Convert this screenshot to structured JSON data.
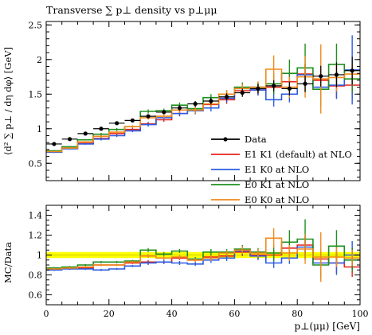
{
  "chart_data": [
    {
      "type": "line",
      "title": "Transverse ∑ p⊥ density vs p⊥μμ",
      "xlabel": "p⊥(μμ) [GeV]",
      "ylabel": "⟨d² ∑ p⊥ / dη dφ⟩ [GeV]",
      "xlim": [
        0,
        100
      ],
      "ylim": [
        0.25,
        2.55
      ],
      "yticks": [
        "0.5",
        "1",
        "1.5",
        "2",
        "2.5"
      ],
      "legend_position": "bottom-right",
      "x_edges": [
        0,
        5,
        10,
        15,
        20,
        25,
        30,
        35,
        40,
        45,
        50,
        55,
        60,
        65,
        70,
        75,
        80,
        85,
        90,
        95,
        100
      ],
      "data_points": {
        "x": [
          2.5,
          7.5,
          12.5,
          17.5,
          22.5,
          27.5,
          32.5,
          37.5,
          42.5,
          47.5,
          52.5,
          57.5,
          62.5,
          67.5,
          72.5,
          77.5,
          82.5,
          87.5,
          92.5,
          97.5
        ],
        "y": [
          0.78,
          0.85,
          0.93,
          1.0,
          1.08,
          1.12,
          1.18,
          1.24,
          1.3,
          1.36,
          1.4,
          1.46,
          1.52,
          1.58,
          1.62,
          1.58,
          1.65,
          1.76,
          1.78,
          1.84
        ],
        "yerr": [
          0.02,
          0.02,
          0.02,
          0.02,
          0.02,
          0.02,
          0.03,
          0.03,
          0.04,
          0.04,
          0.05,
          0.05,
          0.06,
          0.07,
          0.08,
          0.1,
          0.12,
          0.15,
          0.18,
          0.2
        ]
      },
      "series": [
        {
          "name": "Data",
          "color": "#000000",
          "style": "points"
        },
        {
          "name": "E1 K1 (default) at NLO",
          "color": "#e8231c",
          "values": [
            0.67,
            0.72,
            0.79,
            0.86,
            0.93,
            0.99,
            1.07,
            1.13,
            1.22,
            1.26,
            1.35,
            1.42,
            1.55,
            1.56,
            1.6,
            1.68,
            1.79,
            1.7,
            1.62,
            1.63
          ],
          "err": [
            0.01,
            0.01,
            0.01,
            0.02,
            0.02,
            0.02,
            0.03,
            0.03,
            0.04,
            0.05,
            0.05,
            0.06,
            0.07,
            0.08,
            0.1,
            0.12,
            0.15,
            0.15,
            0.18,
            0.2
          ]
        },
        {
          "name": "E1 K0 at NLO",
          "color": "#2c5ce0",
          "values": [
            0.66,
            0.71,
            0.78,
            0.85,
            0.9,
            0.97,
            1.06,
            1.16,
            1.22,
            1.26,
            1.3,
            1.44,
            1.58,
            1.56,
            1.42,
            1.5,
            1.78,
            1.6,
            1.63,
            1.85
          ],
          "err": [
            0.01,
            0.01,
            0.01,
            0.02,
            0.02,
            0.02,
            0.03,
            0.03,
            0.04,
            0.05,
            0.05,
            0.06,
            0.07,
            0.08,
            0.1,
            0.12,
            0.15,
            0.18,
            0.2,
            0.5
          ]
        },
        {
          "name": "E0 K1 at NLO",
          "color": "#1f8f1f",
          "values": [
            0.68,
            0.74,
            0.84,
            0.92,
            0.99,
            1.03,
            1.25,
            1.26,
            1.34,
            1.29,
            1.45,
            1.5,
            1.6,
            1.6,
            1.65,
            1.8,
            1.88,
            1.57,
            1.93,
            1.72
          ],
          "err": [
            0.01,
            0.01,
            0.01,
            0.02,
            0.02,
            0.02,
            0.03,
            0.03,
            0.04,
            0.05,
            0.05,
            0.06,
            0.07,
            0.08,
            0.15,
            0.2,
            0.35,
            0.25,
            0.3,
            0.2
          ]
        },
        {
          "name": "E0 K0 at NLO",
          "color": "#f08a1c",
          "values": [
            0.67,
            0.72,
            0.81,
            0.89,
            0.95,
            1.03,
            1.16,
            1.18,
            1.27,
            1.27,
            1.36,
            1.5,
            1.58,
            1.6,
            1.86,
            1.6,
            1.75,
            1.72,
            1.74,
            1.79
          ],
          "err": [
            0.01,
            0.01,
            0.01,
            0.02,
            0.02,
            0.02,
            0.03,
            0.03,
            0.04,
            0.05,
            0.05,
            0.06,
            0.07,
            0.08,
            0.2,
            0.15,
            0.3,
            0.5,
            0.2,
            0.15
          ]
        }
      ]
    },
    {
      "type": "line",
      "ylabel": "MC/Data",
      "xlabel": "p⊥(μμ) [GeV]",
      "xlim": [
        0,
        100
      ],
      "ylim": [
        0.5,
        1.5
      ],
      "yticks": [
        "0.6",
        "0.8",
        "1",
        "1.2",
        "1.4"
      ],
      "xticks": [
        "0",
        "20",
        "40",
        "60",
        "80",
        "100"
      ],
      "data_band": {
        "color": "#ffff00",
        "line_color": "#d8d800"
      },
      "series": [
        {
          "name": "E1 K1 (default) at NLO",
          "color": "#e8231c",
          "values": [
            0.86,
            0.87,
            0.87,
            0.9,
            0.9,
            0.92,
            0.93,
            0.93,
            0.97,
            0.95,
            0.98,
            0.99,
            1.03,
            1.0,
            1.0,
            1.07,
            1.1,
            0.96,
            0.92,
            0.88
          ],
          "err": [
            0.01,
            0.01,
            0.01,
            0.01,
            0.01,
            0.01,
            0.02,
            0.02,
            0.02,
            0.02,
            0.03,
            0.03,
            0.04,
            0.04,
            0.05,
            0.06,
            0.08,
            0.08,
            0.1,
            0.1
          ]
        },
        {
          "name": "E1 K0 at NLO",
          "color": "#2c5ce0",
          "values": [
            0.85,
            0.86,
            0.86,
            0.85,
            0.86,
            0.89,
            0.92,
            0.93,
            0.92,
            0.91,
            0.95,
            0.97,
            1.04,
            0.99,
            0.92,
            0.97,
            1.08,
            0.92,
            0.92,
            1.0
          ],
          "err": [
            0.01,
            0.01,
            0.01,
            0.01,
            0.01,
            0.01,
            0.02,
            0.02,
            0.02,
            0.02,
            0.03,
            0.03,
            0.04,
            0.04,
            0.05,
            0.06,
            0.12,
            0.1,
            0.12,
            0.14
          ]
        },
        {
          "name": "E0 K1 at NLO",
          "color": "#1f8f1f",
          "values": [
            0.87,
            0.88,
            0.9,
            0.93,
            0.93,
            0.94,
            1.05,
            1.01,
            1.04,
            0.96,
            1.03,
            1.03,
            1.06,
            1.03,
            1.02,
            1.13,
            1.16,
            0.9,
            1.09,
            0.95
          ],
          "err": [
            0.01,
            0.01,
            0.01,
            0.01,
            0.01,
            0.01,
            0.02,
            0.02,
            0.02,
            0.02,
            0.03,
            0.03,
            0.04,
            0.04,
            0.08,
            0.12,
            0.2,
            0.14,
            0.16,
            0.12
          ]
        },
        {
          "name": "E0 K0 at NLO",
          "color": "#f08a1c",
          "values": [
            0.86,
            0.87,
            0.88,
            0.9,
            0.9,
            0.93,
            0.99,
            0.97,
            0.98,
            0.95,
            0.97,
            1.02,
            1.05,
            1.02,
            1.17,
            1.02,
            1.06,
            0.98,
            0.98,
            0.97
          ],
          "err": [
            0.01,
            0.01,
            0.01,
            0.01,
            0.01,
            0.01,
            0.02,
            0.02,
            0.02,
            0.02,
            0.03,
            0.03,
            0.04,
            0.04,
            0.1,
            0.08,
            0.15,
            0.25,
            0.1,
            0.08
          ]
        }
      ]
    }
  ]
}
